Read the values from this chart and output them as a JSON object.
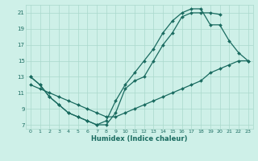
{
  "xlabel": "Humidex (Indice chaleur)",
  "xlim": [
    -0.5,
    23.5
  ],
  "ylim": [
    6.5,
    22
  ],
  "xticks": [
    0,
    1,
    2,
    3,
    4,
    5,
    6,
    7,
    8,
    9,
    10,
    11,
    12,
    13,
    14,
    15,
    16,
    17,
    18,
    19,
    20,
    21,
    22,
    23
  ],
  "yticks": [
    7,
    9,
    11,
    13,
    15,
    17,
    19,
    21
  ],
  "bg_color": "#cef0e8",
  "grid_color": "#aad8cc",
  "line_color": "#1a6b60",
  "line1_x": [
    0,
    1,
    2,
    3,
    4,
    5,
    6,
    7,
    8,
    9,
    10,
    11,
    12,
    13,
    14,
    15,
    16,
    17,
    18,
    19,
    20,
    21,
    22,
    23
  ],
  "line1_y": [
    13,
    12,
    10.5,
    9.5,
    8.5,
    8,
    7.5,
    7,
    7,
    8.5,
    11.5,
    12.5,
    13,
    15,
    17,
    18.5,
    20.5,
    21,
    21,
    21,
    20.8,
    null,
    null,
    null
  ],
  "line2_x": [
    0,
    1,
    2,
    3,
    4,
    5,
    6,
    7,
    8,
    9,
    10,
    11,
    12,
    13,
    14,
    15,
    16,
    17,
    18,
    19,
    20,
    21,
    22,
    23
  ],
  "line2_y": [
    13,
    12,
    10.5,
    9.5,
    8.5,
    8,
    7.5,
    7,
    7.5,
    10,
    12,
    13.5,
    15,
    16.5,
    18.5,
    20,
    21,
    21.5,
    21.5,
    19.5,
    19.5,
    17.5,
    16,
    15
  ],
  "line3_x": [
    0,
    1,
    2,
    3,
    4,
    5,
    6,
    7,
    8,
    9,
    10,
    11,
    12,
    13,
    14,
    15,
    16,
    17,
    18,
    19,
    20,
    21,
    22,
    23
  ],
  "line3_y": [
    12,
    11.5,
    11,
    10.5,
    10,
    9.5,
    9,
    8.5,
    8,
    8,
    8.5,
    9,
    9.5,
    10,
    10.5,
    11,
    11.5,
    12,
    12.5,
    13.5,
    14,
    14.5,
    15,
    15
  ]
}
